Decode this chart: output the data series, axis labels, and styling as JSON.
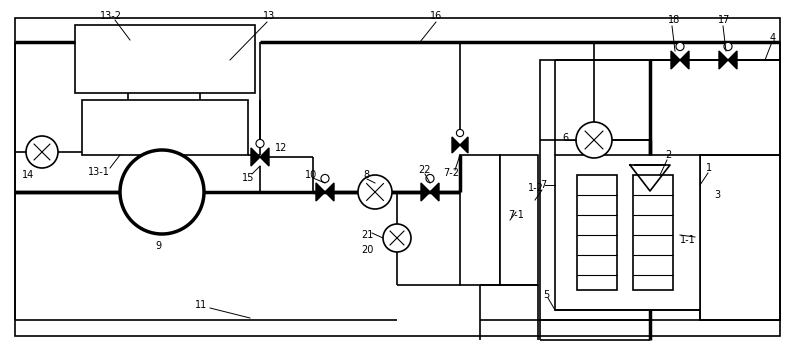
{
  "bg_color": "#ffffff",
  "lc": "#000000",
  "lw": 1.2,
  "tlw": 2.5
}
